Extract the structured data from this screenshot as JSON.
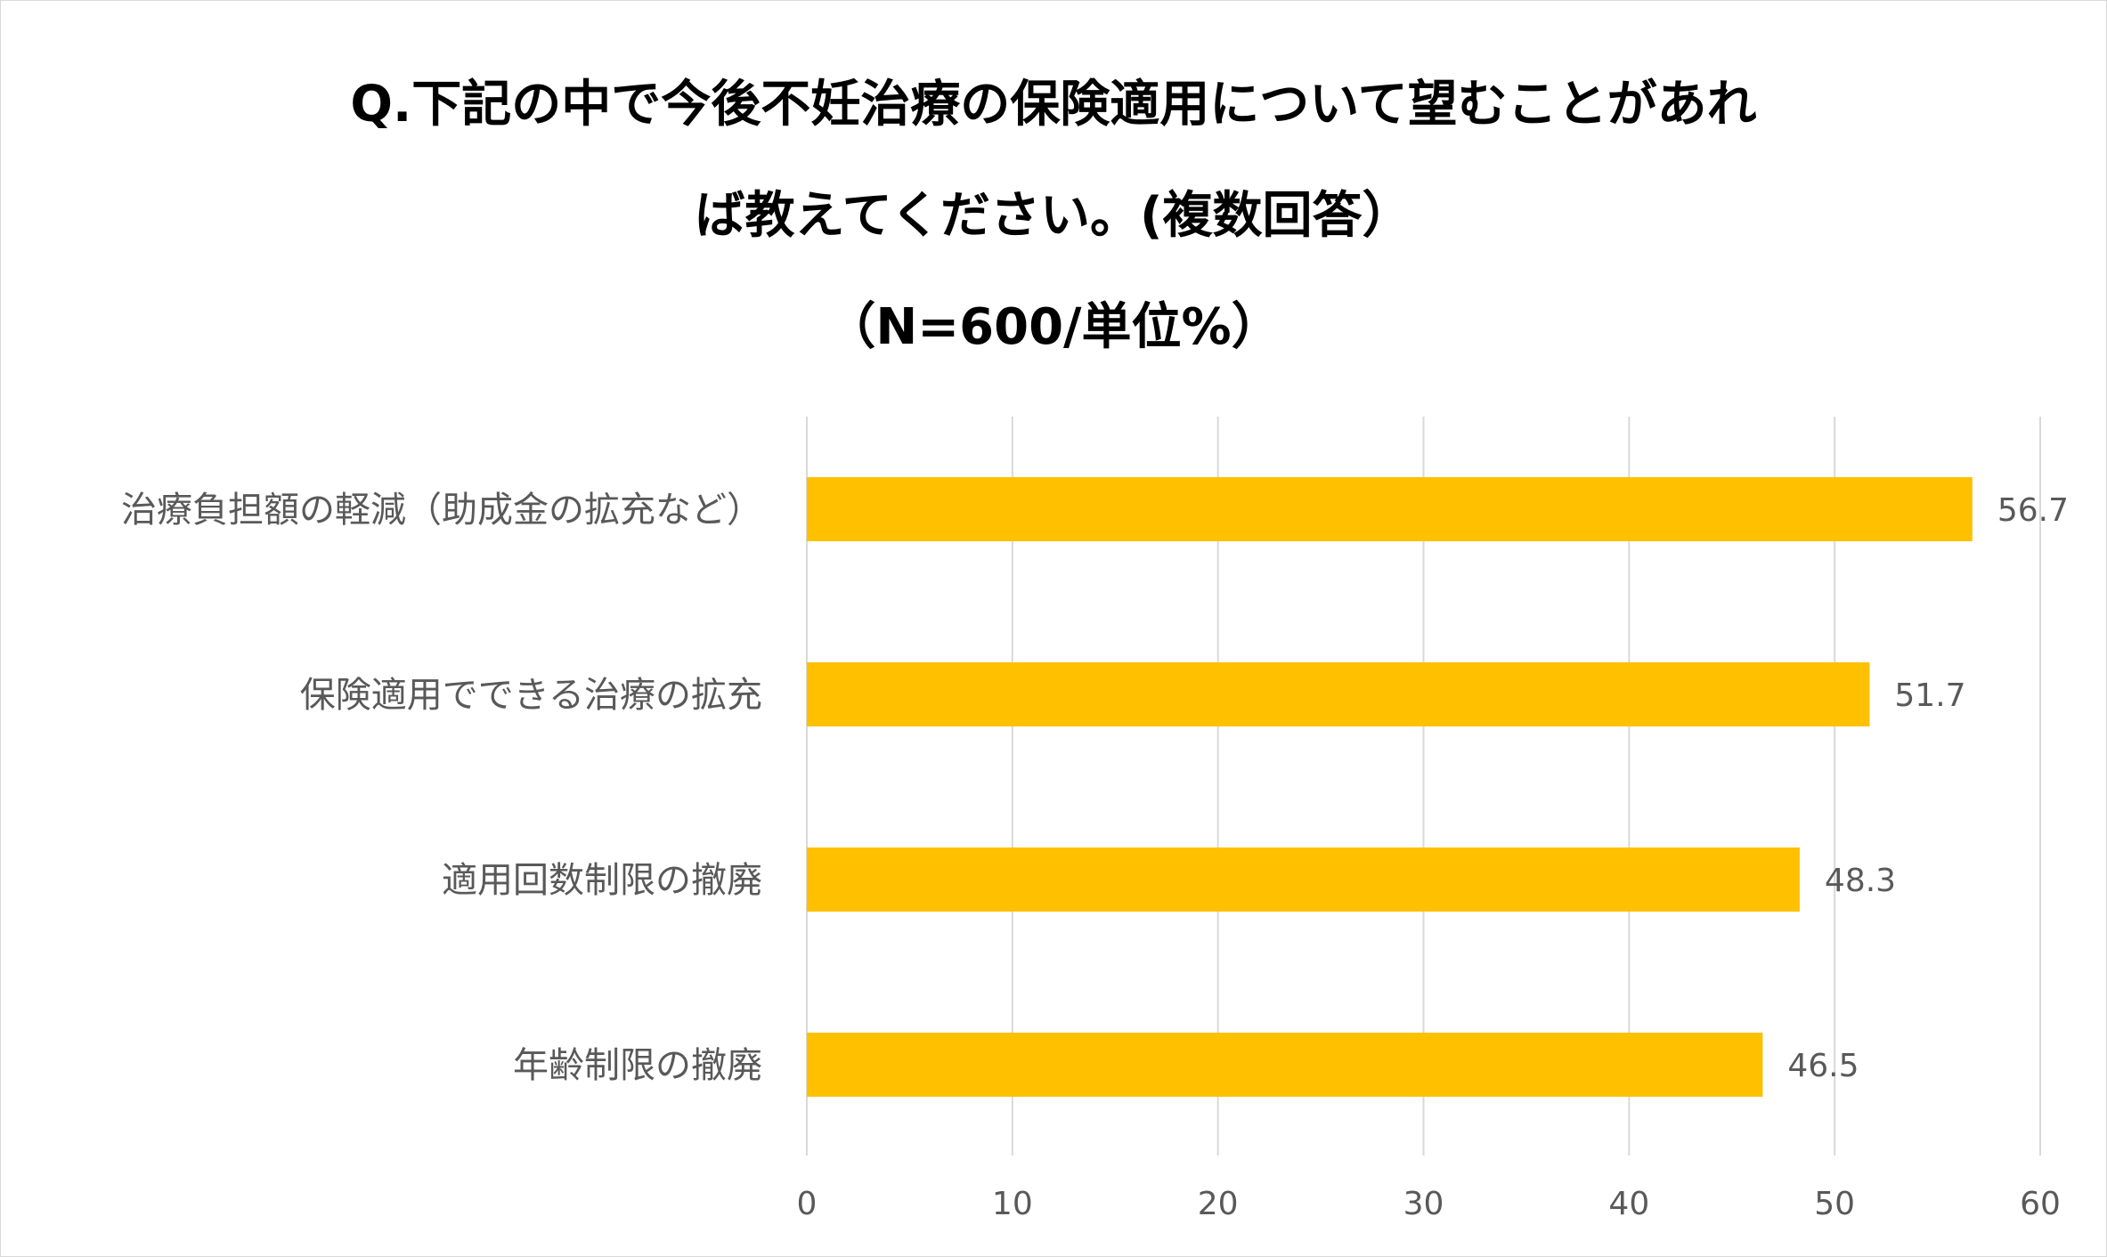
{
  "chart_data": {
    "type": "bar",
    "orientation": "horizontal",
    "title": "Q.下記の中で今後不妊治療の保険適用について望むことがあれば教えてください。(複数回答)（N=600/単位%）",
    "title_lines": [
      "Q.下記の中で今後不妊治療の保険適用について望むことがあれ",
      "ば教えてください。(複数回答）",
      "（N=600/単位%）"
    ],
    "categories": [
      "治療負担額の軽減（助成金の拡充など）",
      "保険適用でできる治療の拡充",
      "適用回数制限の撤廃",
      "年齢制限の撤廃"
    ],
    "values": [
      56.7,
      51.7,
      48.3,
      46.5
    ],
    "value_labels": [
      "56.7",
      "51.7",
      "48.3",
      "46.5"
    ],
    "xlim": [
      0,
      60
    ],
    "xticks": [
      0,
      10,
      20,
      30,
      40,
      50,
      60
    ],
    "xtick_labels": [
      "0",
      "10",
      "20",
      "30",
      "40",
      "50",
      "60"
    ],
    "grid": "vertical",
    "legend": "none",
    "bar_color": "#FFC000",
    "gridline_color": "#D9D9D9",
    "text_color": "#595959"
  }
}
